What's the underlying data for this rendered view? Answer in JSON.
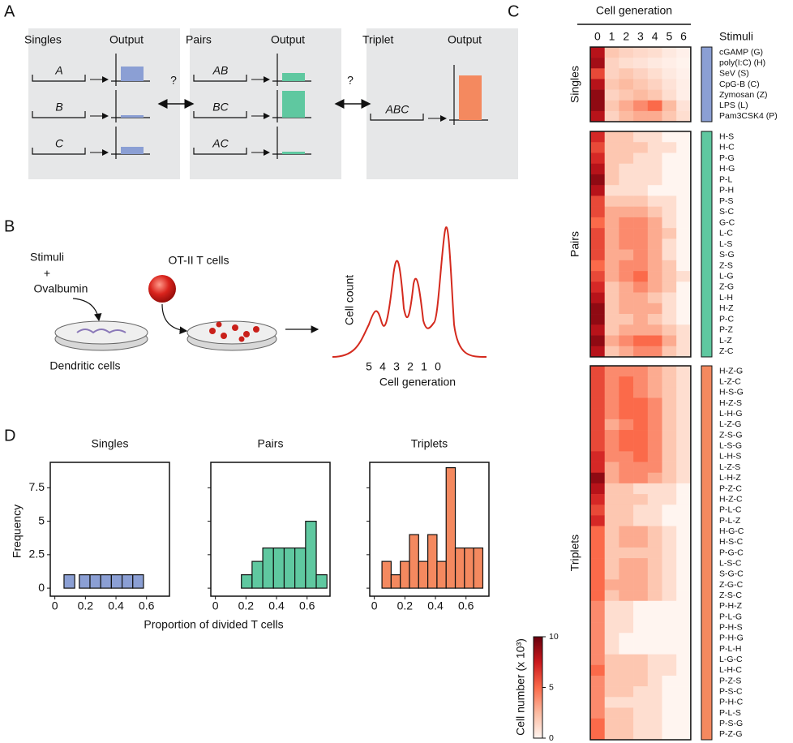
{
  "panel_labels": [
    "A",
    "B",
    "C",
    "D"
  ],
  "panel_a": {
    "question": "?",
    "groups": [
      {
        "title": "Singles",
        "output": "Output",
        "inputs": [
          "A",
          "B",
          "C"
        ]
      },
      {
        "title": "Pairs",
        "output": "Output",
        "inputs": [
          "AB",
          "BC",
          "AC"
        ]
      },
      {
        "title": "Triplet",
        "output": "Output",
        "inputs": [
          "ABC"
        ]
      }
    ]
  },
  "panel_b": {
    "stimuli": "Stimuli",
    "plus": "+",
    "ovalbumin": "Ovalbumin",
    "t_cells": "OT-II T cells",
    "dendritic": "Dendritic cells",
    "ylabel": "Cell count",
    "generations": [
      5,
      4,
      3,
      2,
      1,
      0
    ],
    "xlabel": "Cell generation"
  },
  "chart_data": [
    {
      "type": "heatmap",
      "title": "Cell generation",
      "columns": [
        0,
        1,
        2,
        3,
        4,
        5,
        6
      ],
      "row_header": "Stimuli",
      "colors": [
        "#fff5f0",
        "#fcbba1",
        "#fb6a4a",
        "#cb181d",
        "#67000d"
      ],
      "colorbar_label": "Cell number (x 10³)",
      "colorbar_lim": [
        0,
        10
      ],
      "colorbar_ticks": [
        0,
        5,
        10
      ],
      "groups": [
        {
          "name": "Singles",
          "color": "#8b9fd4",
          "rows": [
            "cGAMP (G)",
            "poly(I:C) (H)",
            "SeV (S)",
            "CpG-B (C)",
            "Zymosan (Z)",
            "LPS (L)",
            "Pam3CSK4 (P)"
          ],
          "values": [
            [
              8,
              2,
              1.5,
              1.2,
              1,
              0.5,
              0.2
            ],
            [
              8.5,
              1.5,
              1,
              0.8,
              0.5,
              0.3,
              0.1
            ],
            [
              6,
              1.5,
              2,
              1.5,
              1,
              0.5,
              0.2
            ],
            [
              8,
              2,
              2.5,
              2,
              1.5,
              0.8,
              0.3
            ],
            [
              9,
              1.5,
              2,
              2.5,
              2,
              1,
              0.3
            ],
            [
              9,
              2,
              3,
              4,
              5,
              2.5,
              0.8
            ],
            [
              8,
              1.5,
              2.5,
              3,
              3,
              2,
              1
            ]
          ]
        },
        {
          "name": "Pairs",
          "color": "#5fc8a0",
          "rows": [
            "H-S",
            "H-C",
            "P-G",
            "H-G",
            "P-L",
            "P-H",
            "P-S",
            "S-C",
            "G-C",
            "L-C",
            "L-S",
            "S-G",
            "Z-S",
            "L-G",
            "Z-G",
            "L-H",
            "H-Z",
            "P-C",
            "P-Z",
            "L-Z",
            "Z-C"
          ],
          "values": [
            [
              7,
              2,
              2,
              1,
              1,
              0,
              0
            ],
            [
              6,
              2,
              2,
              2,
              1,
              1,
              0
            ],
            [
              7,
              2,
              2,
              1,
              1,
              0,
              0
            ],
            [
              8,
              2,
              1,
              1,
              1,
              0,
              0
            ],
            [
              9,
              2,
              1,
              1,
              1,
              0,
              0
            ],
            [
              8,
              1,
              1,
              1,
              0,
              0,
              0
            ],
            [
              6,
              2,
              2,
              2,
              1,
              1,
              0
            ],
            [
              6,
              3,
              3,
              3,
              2,
              1,
              0
            ],
            [
              5,
              3,
              4,
              4,
              3,
              1,
              0
            ],
            [
              6,
              3,
              4,
              4,
              3,
              2,
              0
            ],
            [
              6,
              3,
              4,
              4,
              3,
              1,
              0
            ],
            [
              6,
              3,
              3,
              4,
              3,
              1,
              0
            ],
            [
              5,
              3,
              4,
              4,
              3,
              2,
              0
            ],
            [
              6,
              3,
              4,
              5,
              3,
              2,
              1
            ],
            [
              7,
              2,
              3,
              4,
              3,
              2,
              0
            ],
            [
              8,
              2,
              3,
              3,
              2,
              1,
              0
            ],
            [
              9,
              2,
              3,
              3,
              3,
              1,
              0
            ],
            [
              9,
              2,
              2,
              3,
              2,
              1,
              0
            ],
            [
              8,
              2,
              3,
              3,
              3,
              2,
              1
            ],
            [
              9,
              3,
              4,
              5,
              5,
              3,
              1
            ],
            [
              8,
              2,
              3,
              4,
              4,
              2,
              1
            ]
          ]
        },
        {
          "name": "Triplets",
          "color": "#f4895f",
          "rows": [
            "H-Z-G",
            "L-Z-C",
            "H-S-G",
            "H-Z-S",
            "L-H-G",
            "L-Z-G",
            "Z-S-G",
            "L-S-G",
            "L-H-S",
            "L-Z-S",
            "L-H-Z",
            "P-Z-C",
            "H-Z-C",
            "P-L-C",
            "P-L-Z",
            "H-G-C",
            "H-S-C",
            "P-G-C",
            "L-S-C",
            "S-G-C",
            "Z-G-C",
            "Z-S-C",
            "P-H-Z",
            "P-L-G",
            "P-H-S",
            "P-H-G",
            "P-L-H",
            "L-G-C",
            "L-H-C",
            "P-Z-S",
            "P-S-C",
            "P-H-C",
            "P-L-S",
            "P-S-G",
            "P-Z-G"
          ],
          "values": [
            [
              6,
              4,
              4,
              4,
              3,
              2,
              1
            ],
            [
              6,
              4,
              5,
              4,
              3,
              2,
              1
            ],
            [
              6,
              4,
              5,
              4,
              3,
              2,
              1
            ],
            [
              6,
              4,
              5,
              5,
              4,
              2,
              1
            ],
            [
              6,
              4,
              5,
              5,
              4,
              2,
              1
            ],
            [
              6,
              3,
              4,
              5,
              4,
              2,
              1
            ],
            [
              6,
              4,
              5,
              5,
              4,
              2,
              1
            ],
            [
              6,
              4,
              5,
              5,
              4,
              2,
              1
            ],
            [
              7,
              4,
              4,
              5,
              4,
              2,
              1
            ],
            [
              7,
              3,
              4,
              4,
              4,
              2,
              1
            ],
            [
              9,
              3,
              4,
              4,
              3,
              2,
              1
            ],
            [
              8,
              2,
              2,
              1,
              1,
              1,
              0
            ],
            [
              7,
              2,
              2,
              2,
              1,
              1,
              0
            ],
            [
              6,
              2,
              2,
              1,
              1,
              0,
              0
            ],
            [
              7,
              2,
              2,
              1,
              1,
              0,
              0
            ],
            [
              5,
              2,
              3,
              3,
              2,
              1,
              0
            ],
            [
              5,
              2,
              3,
              3,
              2,
              1,
              0
            ],
            [
              5,
              2,
              2,
              2,
              2,
              1,
              0
            ],
            [
              5,
              2,
              3,
              3,
              2,
              1,
              0
            ],
            [
              5,
              2,
              3,
              3,
              2,
              1,
              0
            ],
            [
              5,
              3,
              3,
              3,
              2,
              1,
              0
            ],
            [
              5,
              2,
              3,
              3,
              2,
              1,
              0
            ],
            [
              4,
              1,
              1,
              0,
              0,
              0,
              0
            ],
            [
              4,
              1,
              1,
              0,
              0,
              0,
              0
            ],
            [
              4,
              1,
              1,
              0,
              0,
              0,
              0
            ],
            [
              4,
              1,
              0,
              0,
              0,
              0,
              0
            ],
            [
              4,
              1,
              0,
              0,
              0,
              0,
              0
            ],
            [
              4,
              2,
              2,
              2,
              1,
              1,
              0
            ],
            [
              5,
              2,
              2,
              2,
              1,
              1,
              0
            ],
            [
              4,
              2,
              2,
              2,
              1,
              0,
              0
            ],
            [
              4,
              2,
              2,
              1,
              1,
              0,
              0
            ],
            [
              4,
              1,
              1,
              1,
              1,
              0,
              0
            ],
            [
              4,
              2,
              2,
              1,
              1,
              0,
              0
            ],
            [
              5,
              2,
              2,
              1,
              1,
              0,
              0
            ],
            [
              5,
              2,
              2,
              1,
              1,
              0,
              0
            ]
          ]
        }
      ]
    },
    {
      "type": "histogram",
      "title": "Singles",
      "color": "#8b9fd4",
      "ylabel": "Frequency",
      "bins": [
        0.06,
        0.13,
        0.16,
        0.23,
        0.3,
        0.37,
        0.44,
        0.51,
        0.58
      ],
      "counts": [
        1,
        0,
        1,
        1,
        1,
        1,
        1,
        1
      ],
      "xlim": [
        -0.03,
        0.75
      ],
      "xticks": [
        0,
        0.2,
        0.4,
        0.6
      ],
      "ylim": [
        -0.6,
        9.4
      ],
      "yticks": [
        0,
        2.5,
        5,
        7.5
      ]
    },
    {
      "type": "histogram",
      "title": "Pairs",
      "color": "#5fc8a0",
      "xlabel": "Proportion of divided T cells",
      "bins": [
        0.17,
        0.24,
        0.31,
        0.38,
        0.45,
        0.52,
        0.59,
        0.66,
        0.73
      ],
      "counts": [
        1,
        2,
        3,
        3,
        3,
        3,
        5,
        1
      ],
      "xlim": [
        -0.03,
        0.75
      ],
      "xticks": [
        0,
        0.2,
        0.4,
        0.6
      ]
    },
    {
      "type": "histogram",
      "title": "Triplets",
      "color": "#f4895f",
      "bins": [
        0.05,
        0.11,
        0.17,
        0.23,
        0.29,
        0.35,
        0.41,
        0.47,
        0.53,
        0.59,
        0.65,
        0.71
      ],
      "counts": [
        2,
        1,
        2,
        4,
        2,
        4,
        2,
        9,
        3,
        3,
        3
      ],
      "xlim": [
        -0.03,
        0.75
      ],
      "xticks": [
        0,
        0.2,
        0.4,
        0.6
      ]
    }
  ]
}
